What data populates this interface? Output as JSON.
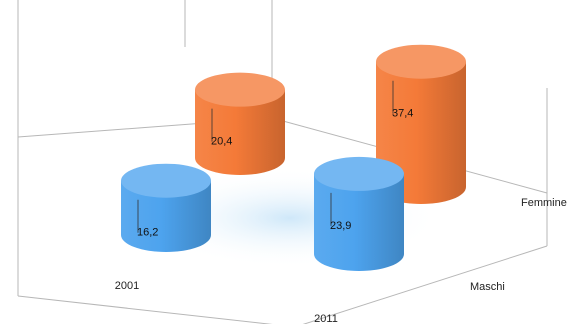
{
  "chart_data": {
    "type": "bar",
    "style": "3d-cylinder",
    "categories": [
      "2001",
      "2011"
    ],
    "series": [
      {
        "name": "Maschi",
        "values": [
          16.2,
          23.9
        ],
        "labels": [
          "16,2",
          "23,9"
        ],
        "color": "#4da3ee"
      },
      {
        "name": "Femmine",
        "values": [
          20.4,
          37.4
        ],
        "labels": [
          "20,4",
          "37,4"
        ],
        "color": "#f47a38"
      }
    ],
    "title": "",
    "xlabel": "",
    "ylabel": "",
    "ylim": [
      0,
      40
    ],
    "grid": false,
    "legend": "none"
  }
}
